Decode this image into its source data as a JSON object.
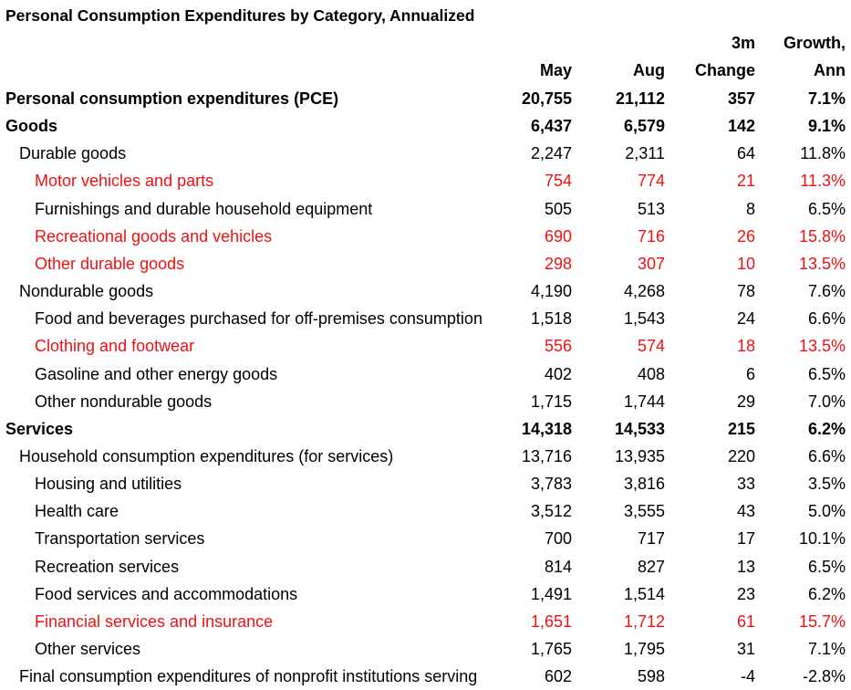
{
  "chart_data": {
    "type": "table",
    "title": "Personal Consumption Expenditures by Category, Annualized",
    "columns": [
      [
        "",
        "May"
      ],
      [
        "",
        "Aug"
      ],
      [
        "3m",
        "Change"
      ],
      [
        "Growth,",
        "Ann"
      ]
    ],
    "accent_color": "#ee1111",
    "rows": [
      {
        "label": "Personal consumption expenditures (PCE)",
        "indent": 0,
        "bold": true,
        "red": false,
        "may": "20,755",
        "aug": "21,112",
        "change": "357",
        "growth": "7.1%"
      },
      {
        "label": "Goods",
        "indent": 0,
        "bold": true,
        "red": false,
        "may": "6,437",
        "aug": "6,579",
        "change": "142",
        "growth": "9.1%"
      },
      {
        "label": "Durable goods",
        "indent": 1,
        "bold": false,
        "red": false,
        "may": "2,247",
        "aug": "2,311",
        "change": "64",
        "growth": "11.8%"
      },
      {
        "label": "Motor vehicles and parts",
        "indent": 2,
        "bold": false,
        "red": true,
        "may": "754",
        "aug": "774",
        "change": "21",
        "growth": "11.3%"
      },
      {
        "label": "Furnishings and durable household equipment",
        "indent": 2,
        "bold": false,
        "red": false,
        "may": "505",
        "aug": "513",
        "change": "8",
        "growth": "6.5%"
      },
      {
        "label": "Recreational goods and vehicles",
        "indent": 2,
        "bold": false,
        "red": true,
        "may": "690",
        "aug": "716",
        "change": "26",
        "growth": "15.8%"
      },
      {
        "label": "Other durable goods",
        "indent": 2,
        "bold": false,
        "red": true,
        "may": "298",
        "aug": "307",
        "change": "10",
        "growth": "13.5%"
      },
      {
        "label": "Nondurable goods",
        "indent": 1,
        "bold": false,
        "red": false,
        "may": "4,190",
        "aug": "4,268",
        "change": "78",
        "growth": "7.6%"
      },
      {
        "label": "Food and beverages purchased for off-premises consumption",
        "indent": 2,
        "bold": false,
        "red": false,
        "may": "1,518",
        "aug": "1,543",
        "change": "24",
        "growth": "6.6%"
      },
      {
        "label": "Clothing and footwear",
        "indent": 2,
        "bold": false,
        "red": true,
        "may": "556",
        "aug": "574",
        "change": "18",
        "growth": "13.5%"
      },
      {
        "label": "Gasoline and other energy goods",
        "indent": 2,
        "bold": false,
        "red": false,
        "may": "402",
        "aug": "408",
        "change": "6",
        "growth": "6.5%"
      },
      {
        "label": "Other nondurable goods",
        "indent": 2,
        "bold": false,
        "red": false,
        "may": "1,715",
        "aug": "1,744",
        "change": "29",
        "growth": "7.0%"
      },
      {
        "label": "Services",
        "indent": 0,
        "bold": true,
        "red": false,
        "may": "14,318",
        "aug": "14,533",
        "change": "215",
        "growth": "6.2%"
      },
      {
        "label": "Household consumption expenditures (for services)",
        "indent": 1,
        "bold": false,
        "red": false,
        "may": "13,716",
        "aug": "13,935",
        "change": "220",
        "growth": "6.6%"
      },
      {
        "label": "Housing and utilities",
        "indent": 2,
        "bold": false,
        "red": false,
        "may": "3,783",
        "aug": "3,816",
        "change": "33",
        "growth": "3.5%"
      },
      {
        "label": "Health care",
        "indent": 2,
        "bold": false,
        "red": false,
        "may": "3,512",
        "aug": "3,555",
        "change": "43",
        "growth": "5.0%"
      },
      {
        "label": "Transportation services",
        "indent": 2,
        "bold": false,
        "red": false,
        "may": "700",
        "aug": "717",
        "change": "17",
        "growth": "10.1%"
      },
      {
        "label": "Recreation services",
        "indent": 2,
        "bold": false,
        "red": false,
        "may": "814",
        "aug": "827",
        "change": "13",
        "growth": "6.5%"
      },
      {
        "label": "Food services and accommodations",
        "indent": 2,
        "bold": false,
        "red": false,
        "may": "1,491",
        "aug": "1,514",
        "change": "23",
        "growth": "6.2%"
      },
      {
        "label": "Financial services and insurance",
        "indent": 2,
        "bold": false,
        "red": true,
        "may": "1,651",
        "aug": "1,712",
        "change": "61",
        "growth": "15.7%"
      },
      {
        "label": "Other services",
        "indent": 2,
        "bold": false,
        "red": false,
        "may": "1,765",
        "aug": "1,795",
        "change": "31",
        "growth": "7.1%"
      },
      {
        "label": "Final consumption expenditures of nonprofit institutions serving households",
        "indent": 1,
        "bold": false,
        "red": false,
        "may": "602",
        "aug": "598",
        "change": "-4",
        "growth": "-2.8%"
      }
    ]
  }
}
